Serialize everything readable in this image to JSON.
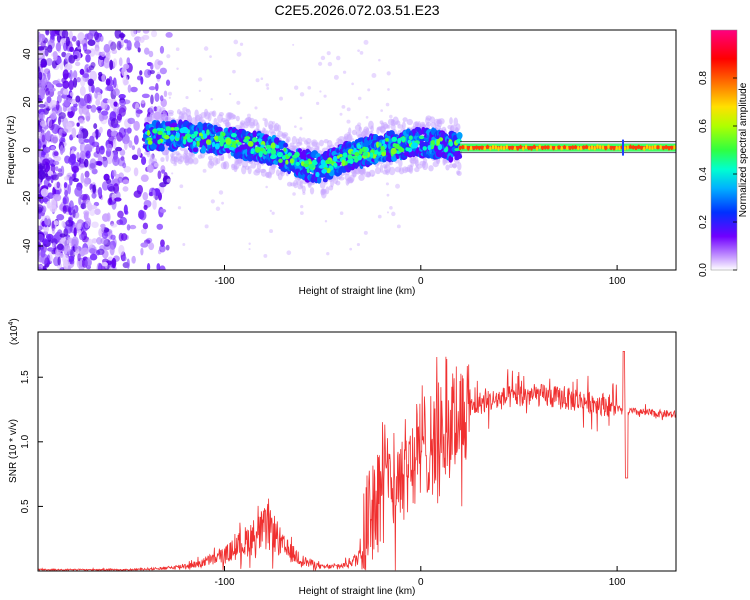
{
  "title": "C2E5.2026.072.03.51.E23",
  "chart_data": [
    {
      "type": "heatmap",
      "xlabel": "Height of straight line (km)",
      "ylabel": "Frequency (Hz)",
      "xlim": [
        -195,
        130
      ],
      "ylim": [
        -50,
        50
      ],
      "xticks": [
        -100,
        0,
        100
      ],
      "xtick_labels": [
        "-100",
        "0",
        "100"
      ],
      "yticks": [
        -40,
        -20,
        0,
        20,
        40
      ],
      "ytick_labels": [
        "-40",
        "-20",
        "0",
        "20",
        "40"
      ],
      "ridge": {
        "x": [
          -140,
          -120,
          -100,
          -80,
          -60,
          -50,
          -40,
          -30,
          -20,
          -10,
          0,
          10,
          20,
          130
        ],
        "y": [
          6,
          6,
          4,
          1,
          -6,
          -8,
          -3,
          -1,
          1,
          2,
          3,
          2,
          1,
          1
        ]
      },
      "colorbar": {
        "label": "Normalized spectral amplitude",
        "range": [
          0.0,
          1.0
        ],
        "ticks": [
          0.0,
          0.2,
          0.4,
          0.6,
          0.8
        ],
        "tick_labels": [
          "0.0",
          "0.2",
          "0.4",
          "0.6",
          "0.8"
        ],
        "colors": [
          "#ffffff",
          "#b070ff",
          "#6000ff",
          "#0040ff",
          "#00c0ff",
          "#00ffc0",
          "#40ff40",
          "#c0ff00",
          "#ffd000",
          "#ff6000",
          "#ff0000",
          "#ff0080"
        ]
      }
    },
    {
      "type": "line",
      "xlabel": "Height of straight line (km)",
      "ylabel": "SNR (10 * v/v)",
      "y_multiplier": "(x10",
      "y_exponent": "4",
      "y_multiplier_close": ")",
      "xlim": [
        -195,
        130
      ],
      "ylim": [
        0,
        1.85
      ],
      "xticks": [
        -100,
        0,
        100
      ],
      "xtick_labels": [
        "-100",
        "0",
        "100"
      ],
      "yticks": [
        0.5,
        1.0,
        1.5
      ],
      "ytick_labels": [
        "0.5",
        "1.0",
        "1.5"
      ],
      "color": "#f03030",
      "envelope": {
        "x": [
          -195,
          -150,
          -130,
          -115,
          -100,
          -90,
          -80,
          -75,
          -70,
          -60,
          -50,
          -40,
          -32,
          -28,
          -25,
          -20,
          -10,
          0,
          10,
          20,
          30,
          40,
          50,
          60,
          70,
          80,
          90,
          100,
          103,
          105,
          110,
          130
        ],
        "y": [
          0.01,
          0.01,
          0.02,
          0.05,
          0.12,
          0.22,
          0.32,
          0.3,
          0.18,
          0.08,
          0.03,
          0.04,
          0.1,
          0.35,
          0.55,
          0.62,
          0.8,
          0.92,
          1.05,
          1.2,
          1.3,
          1.33,
          1.36,
          1.36,
          1.34,
          1.32,
          1.3,
          1.27,
          1.22,
          1.24,
          1.23,
          1.21
        ]
      }
    }
  ]
}
